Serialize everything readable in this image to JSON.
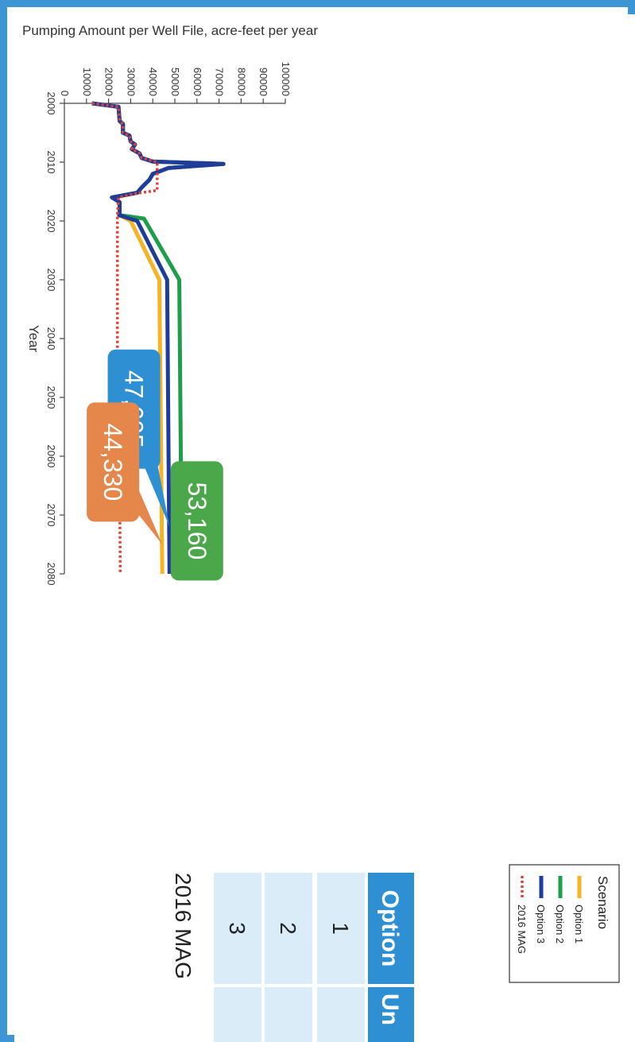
{
  "chart_data": {
    "type": "line",
    "title": "",
    "xlabel": "Year",
    "ylabel": "Pumping Amount per Well File, acre-feet per year",
    "xlim": [
      2000,
      2080
    ],
    "ylim": [
      0,
      100000
    ],
    "x_ticks": [
      2000,
      2010,
      2020,
      2030,
      2040,
      2050,
      2060,
      2070,
      2080
    ],
    "y_ticks": [
      0,
      10000,
      20000,
      30000,
      40000,
      50000,
      60000,
      70000,
      80000,
      90000,
      100000
    ],
    "grid": false,
    "legend": {
      "title": "Scenario",
      "position": "top-right",
      "entries": [
        "Option 1",
        "Option 2",
        "Option 3",
        "2016 MAG"
      ]
    },
    "series": [
      {
        "name": "Option 1",
        "color": "#f5b325",
        "style": "solid",
        "points": [
          [
            2000,
            12500
          ],
          [
            2000.6,
            24500
          ],
          [
            2003,
            25000
          ],
          [
            2003.5,
            26500
          ],
          [
            2005,
            26500
          ],
          [
            2005.5,
            29500
          ],
          [
            2006.5,
            30000
          ],
          [
            2007,
            32000
          ],
          [
            2007.8,
            30500
          ],
          [
            2008.5,
            34000
          ],
          [
            2009.3,
            35000
          ],
          [
            2009.9,
            40000
          ],
          [
            2010.3,
            72000
          ],
          [
            2011,
            47000
          ],
          [
            2012,
            40000
          ],
          [
            2013,
            38500
          ],
          [
            2014.3,
            35000
          ],
          [
            2015.2,
            33000
          ],
          [
            2016,
            21500
          ],
          [
            2016.8,
            25000
          ],
          [
            2018.5,
            25000
          ],
          [
            2019,
            24800
          ],
          [
            2020,
            30000
          ],
          [
            2030,
            43000
          ],
          [
            2080,
            44330
          ]
        ]
      },
      {
        "name": "Option 2",
        "color": "#1e9e4a",
        "style": "solid",
        "points": [
          [
            2000,
            12500
          ],
          [
            2000.6,
            24500
          ],
          [
            2003,
            25000
          ],
          [
            2003.5,
            26500
          ],
          [
            2005,
            26500
          ],
          [
            2005.5,
            29500
          ],
          [
            2006.5,
            30000
          ],
          [
            2007,
            32000
          ],
          [
            2007.8,
            30500
          ],
          [
            2008.5,
            34000
          ],
          [
            2009.3,
            35000
          ],
          [
            2009.9,
            40000
          ],
          [
            2010.3,
            72000
          ],
          [
            2011,
            47000
          ],
          [
            2012,
            40000
          ],
          [
            2013,
            38500
          ],
          [
            2014.3,
            35000
          ],
          [
            2015.2,
            33000
          ],
          [
            2016,
            21500
          ],
          [
            2016.8,
            25000
          ],
          [
            2018.5,
            25000
          ],
          [
            2019,
            24800
          ],
          [
            2019.6,
            36000
          ],
          [
            2030,
            52000
          ],
          [
            2080,
            53160
          ]
        ]
      },
      {
        "name": "Option 3",
        "color": "#1f3c99",
        "style": "solid",
        "points": [
          [
            2000,
            12500
          ],
          [
            2000.6,
            24500
          ],
          [
            2003,
            25000
          ],
          [
            2003.5,
            26500
          ],
          [
            2005,
            26500
          ],
          [
            2005.5,
            29500
          ],
          [
            2006.5,
            30000
          ],
          [
            2007,
            32000
          ],
          [
            2007.8,
            30500
          ],
          [
            2008.5,
            34000
          ],
          [
            2009.3,
            35000
          ],
          [
            2009.9,
            40000
          ],
          [
            2010.3,
            72000
          ],
          [
            2011,
            47000
          ],
          [
            2012,
            40000
          ],
          [
            2013,
            38500
          ],
          [
            2014.3,
            35000
          ],
          [
            2015.2,
            33000
          ],
          [
            2016,
            21500
          ],
          [
            2016.8,
            25000
          ],
          [
            2018.5,
            25000
          ],
          [
            2019,
            24800
          ],
          [
            2020,
            33000
          ],
          [
            2030,
            46500
          ],
          [
            2080,
            47605
          ]
        ]
      },
      {
        "name": "2016 MAG",
        "color": "#e0413a",
        "style": "dotted",
        "points": [
          [
            2000,
            12500
          ],
          [
            2000.6,
            24500
          ],
          [
            2003,
            25000
          ],
          [
            2003.5,
            26500
          ],
          [
            2005,
            26500
          ],
          [
            2005.5,
            29500
          ],
          [
            2006.5,
            30000
          ],
          [
            2007,
            32000
          ],
          [
            2007.8,
            30500
          ],
          [
            2008.5,
            34000
          ],
          [
            2009.3,
            35000
          ],
          [
            2010,
            42000
          ],
          [
            2014.8,
            42000
          ],
          [
            2015.3,
            33000
          ],
          [
            2016,
            24500
          ],
          [
            2019,
            24000
          ],
          [
            2045,
            24000
          ],
          [
            2062,
            25000
          ],
          [
            2080,
            25300
          ]
        ]
      }
    ],
    "annotations": [
      {
        "text": "53,160",
        "series": "Option 2",
        "color": "#4aa84b",
        "target": [
          2074,
          53160
        ],
        "box_center": [
          2071,
          60000
        ]
      },
      {
        "text": "47,605",
        "series": "Option 3",
        "color": "#2f8fd3",
        "target": [
          2072,
          47605
        ],
        "box_center": [
          2052,
          31500
        ]
      },
      {
        "text": "44,330",
        "series": "Option 1",
        "color": "#e5874b",
        "target": [
          2075,
          44330
        ],
        "box_center": [
          2061,
          22000
        ]
      }
    ]
  },
  "side_table": {
    "header": [
      "Option",
      "Un"
    ],
    "rows": [
      "1",
      "2",
      "3",
      "2016 MAG"
    ],
    "header_color": "#2f8fd3",
    "row_color": "#d9ecf7"
  }
}
